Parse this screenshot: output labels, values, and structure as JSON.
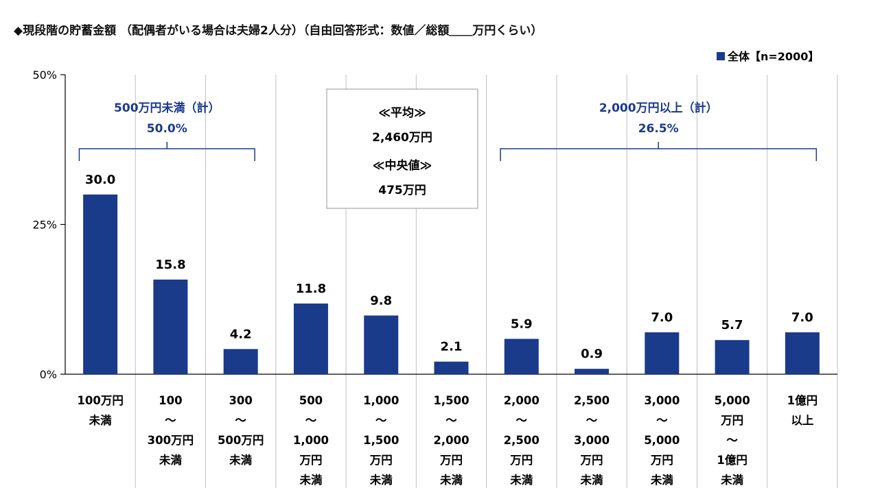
{
  "title": "◆現段階の貯蓄金額 （配偶者がいる場合は夫婦2人分）（自由回答形式：数値／総額＿＿万円くらい）",
  "colors": {
    "bar": "#1a3a8a",
    "bracket": "#1a3a8a",
    "grid": "#bfbfbf"
  },
  "chart_data": {
    "type": "bar",
    "title": "◆現段階の貯蓄金額 （配偶者がいる場合は夫婦2人分）（自由回答形式：数値／総額＿＿万円くらい）",
    "legend": {
      "label": "全体【n=2000】",
      "position": "top-right"
    },
    "ylim": [
      0,
      50
    ],
    "yticks": [
      "0%",
      "25%",
      "50%"
    ],
    "categories": [
      [
        "100万円",
        "未満"
      ],
      [
        "100",
        "～",
        "300万円",
        "未満"
      ],
      [
        "300",
        "～",
        "500万円",
        "未満"
      ],
      [
        "500",
        "～",
        "1,000",
        "万円",
        "未満"
      ],
      [
        "1,000",
        "～",
        "1,500",
        "万円",
        "未満"
      ],
      [
        "1,500",
        "～",
        "2,000",
        "万円",
        "未満"
      ],
      [
        "2,000",
        "～",
        "2,500",
        "万円",
        "未満"
      ],
      [
        "2,500",
        "～",
        "3,000",
        "万円",
        "未満"
      ],
      [
        "3,000",
        "～",
        "5,000",
        "万円",
        "未満"
      ],
      [
        "5,000",
        "万円",
        "～",
        "1億円",
        "未満"
      ],
      [
        "1億円",
        "以上"
      ]
    ],
    "values": [
      30.0,
      15.8,
      4.2,
      11.8,
      9.8,
      2.1,
      5.9,
      0.9,
      7.0,
      5.7,
      7.0
    ],
    "value_labels": [
      "30.0",
      "15.8",
      "4.2",
      "11.8",
      "9.8",
      "2.1",
      "5.9",
      "0.9",
      "7.0",
      "5.7",
      "7.0"
    ],
    "groups": [
      {
        "label": "500万円未満（計）",
        "value": "50.0%",
        "from": 0,
        "to": 2
      },
      {
        "label": "2,000万円以上（計）",
        "value": "26.5%",
        "from": 6,
        "to": 10
      }
    ],
    "stats_box": {
      "lines": [
        "≪平均≫",
        "2,460万円",
        "≪中央値≫",
        "475万円"
      ]
    }
  }
}
